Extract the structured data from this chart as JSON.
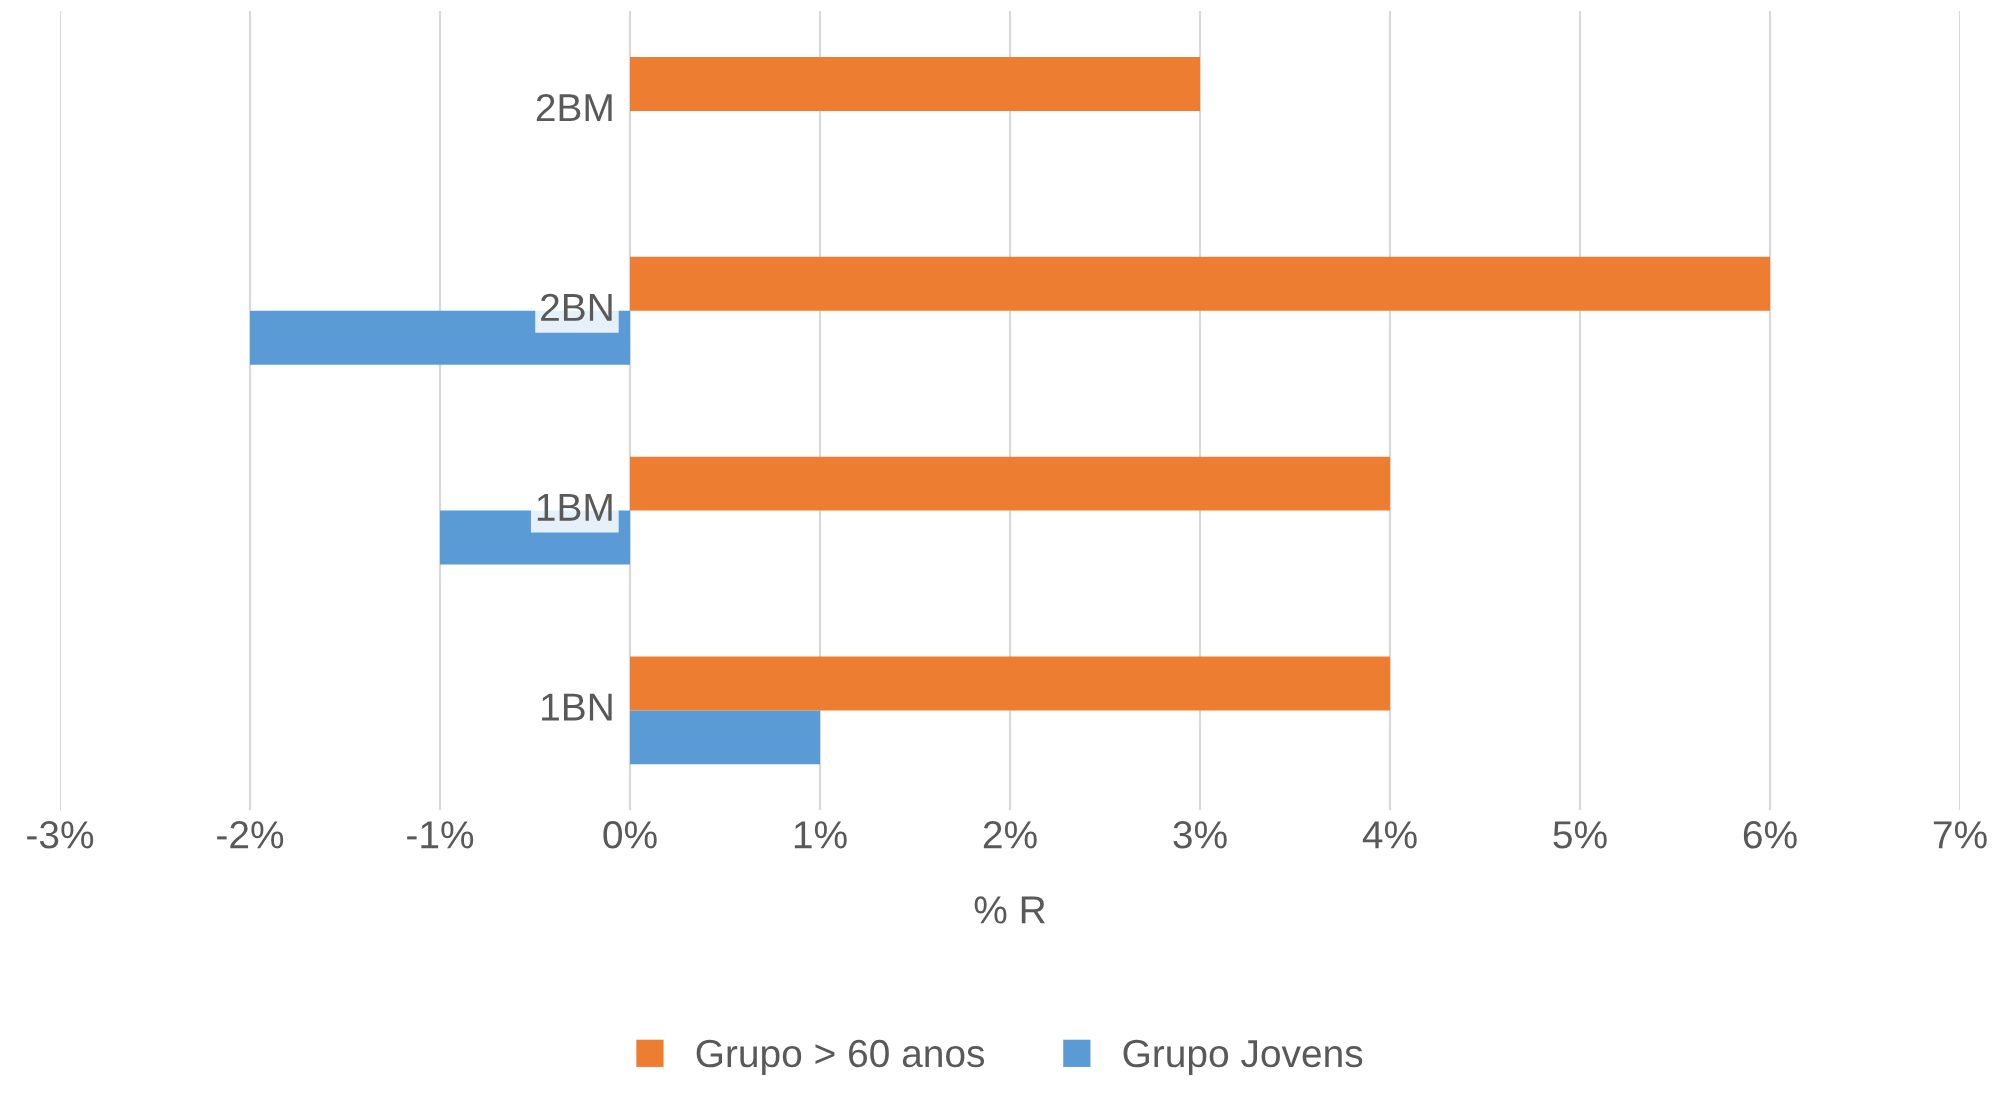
{
  "chart_data": {
    "type": "bar",
    "orientation": "horizontal",
    "xlabel": "% R",
    "categories": [
      "2BM",
      "2BN",
      "1BM",
      "1BN"
    ],
    "series": [
      {
        "name": "Grupo > 60 anos",
        "color": "#ed7d31",
        "values": [
          3,
          6,
          4,
          4
        ]
      },
      {
        "name": "Grupo Jovens",
        "color": "#5b9bd5",
        "values": [
          null,
          -2,
          -1,
          1
        ]
      }
    ],
    "xlim": [
      -3,
      7
    ],
    "xticks": [
      {
        "value": -3,
        "label": "-3%"
      },
      {
        "value": -2,
        "label": "-2%"
      },
      {
        "value": -1,
        "label": "-1%"
      },
      {
        "value": 0,
        "label": "0%"
      },
      {
        "value": 1,
        "label": "1%"
      },
      {
        "value": 2,
        "label": "2%"
      },
      {
        "value": 3,
        "label": "3%"
      },
      {
        "value": 4,
        "label": "4%"
      },
      {
        "value": 5,
        "label": "5%"
      },
      {
        "value": 6,
        "label": "6%"
      },
      {
        "value": 7,
        "label": "7%"
      }
    ],
    "grid": "x",
    "legend": "bottom"
  }
}
